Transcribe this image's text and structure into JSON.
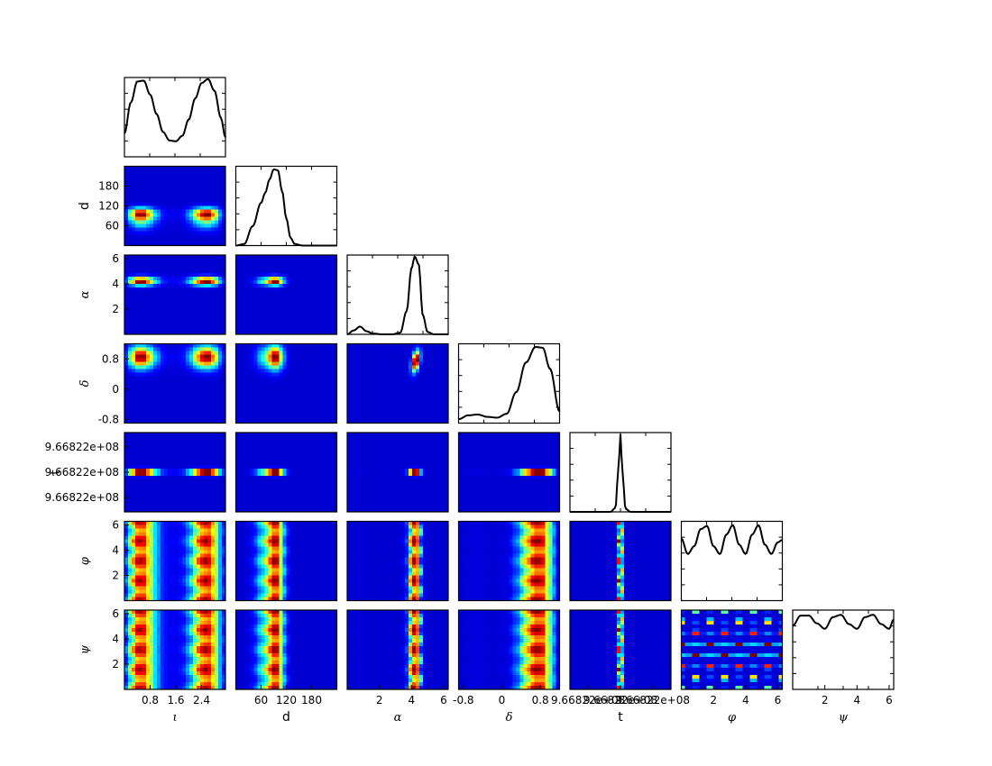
{
  "chart_data": {
    "type": "corner",
    "colormap": "jet",
    "parameters": [
      {
        "key": "iota",
        "label": "ι",
        "range": [
          0,
          3.1416
        ],
        "ticks": [
          0.8,
          1.6,
          2.4
        ],
        "tick_labels": [
          "0.8",
          "1.6",
          "2.4"
        ]
      },
      {
        "key": "d",
        "label": "d",
        "range": [
          0,
          240
        ],
        "ticks": [
          60,
          120,
          180
        ],
        "tick_labels": [
          "60",
          "120",
          "180"
        ]
      },
      {
        "key": "alpha",
        "label": "α",
        "range": [
          0,
          6.2832
        ],
        "ticks": [
          2,
          4,
          6
        ],
        "tick_labels": [
          "2",
          "4",
          "6"
        ]
      },
      {
        "key": "delta",
        "label": "δ",
        "range": [
          -0.9,
          1.2
        ],
        "ticks": [
          -0.8,
          0,
          0.8
        ],
        "tick_labels": [
          "-0.8",
          "0",
          "0.8"
        ]
      },
      {
        "key": "t",
        "label": "t",
        "range": [
          0,
          1
        ],
        "ticks": [
          0.18,
          0.5,
          0.82
        ],
        "tick_labels": [
          "9.66822e+08",
          "9.66822e+08",
          "9.66822e+08"
        ]
      },
      {
        "key": "phi",
        "label": "φ",
        "range": [
          0,
          6.2832
        ],
        "ticks": [
          2,
          4,
          6
        ],
        "tick_labels": [
          "2",
          "4",
          "6"
        ]
      },
      {
        "key": "psi",
        "label": "ψ",
        "range": [
          0,
          6.2832
        ],
        "ticks": [
          2,
          4,
          6
        ],
        "tick_labels": [
          "2",
          "4",
          "6"
        ]
      }
    ],
    "marginals": [
      {
        "param": "ι",
        "x": [
          0,
          0.2,
          0.4,
          0.6,
          0.8,
          1.0,
          1.2,
          1.4,
          1.6,
          1.8,
          2.0,
          2.2,
          2.4,
          2.6,
          2.8,
          3.0,
          3.14
        ],
        "y": [
          0.3,
          0.7,
          0.97,
          0.98,
          0.8,
          0.55,
          0.32,
          0.21,
          0.2,
          0.27,
          0.48,
          0.75,
          0.95,
          1.0,
          0.85,
          0.5,
          0.25
        ]
      },
      {
        "param": "d",
        "x": [
          0,
          20,
          40,
          60,
          70,
          80,
          90,
          100,
          110,
          120,
          130,
          140,
          160,
          200,
          240
        ],
        "y": [
          0.0,
          0.02,
          0.25,
          0.55,
          0.68,
          0.85,
          0.98,
          0.97,
          0.7,
          0.35,
          0.1,
          0.02,
          0.0,
          0.0,
          0.0
        ]
      },
      {
        "param": "α",
        "x": [
          0,
          0.4,
          0.8,
          1.2,
          1.6,
          2.2,
          2.8,
          3.3,
          3.7,
          4.0,
          4.2,
          4.45,
          4.7,
          5.0,
          5.4,
          6.28
        ],
        "y": [
          0.0,
          0.05,
          0.1,
          0.04,
          0.01,
          0.0,
          0.0,
          0.02,
          0.3,
          0.85,
          1.0,
          0.9,
          0.25,
          0.03,
          0.0,
          0.0
        ]
      },
      {
        "param": "δ",
        "x": [
          -0.9,
          -0.7,
          -0.5,
          -0.3,
          -0.1,
          0.1,
          0.3,
          0.5,
          0.7,
          0.85,
          1.0,
          1.2
        ],
        "y": [
          0.05,
          0.1,
          0.11,
          0.08,
          0.07,
          0.12,
          0.4,
          0.78,
          0.98,
          0.97,
          0.7,
          0.15
        ]
      },
      {
        "param": "t",
        "x": [
          0.0,
          0.4,
          0.45,
          0.48,
          0.5,
          0.52,
          0.55,
          0.6,
          1.0
        ],
        "y": [
          0.0,
          0.0,
          0.05,
          0.55,
          1.0,
          0.5,
          0.04,
          0.0,
          0.0
        ]
      },
      {
        "param": "φ",
        "x": [
          0,
          0.4,
          0.8,
          1.2,
          1.6,
          2.0,
          2.4,
          2.8,
          3.2,
          3.6,
          4.0,
          4.4,
          4.8,
          5.2,
          5.6,
          6.0,
          6.28
        ],
        "y": [
          0.8,
          0.6,
          0.7,
          0.92,
          0.96,
          0.7,
          0.6,
          0.85,
          0.97,
          0.72,
          0.6,
          0.85,
          0.97,
          0.72,
          0.6,
          0.75,
          0.78
        ]
      },
      {
        "param": "ψ",
        "x": [
          0,
          0.5,
          1.0,
          1.5,
          2.0,
          2.5,
          3.0,
          3.5,
          4.0,
          4.5,
          5.0,
          5.5,
          6.0,
          6.28
        ],
        "y": [
          0.82,
          0.95,
          0.95,
          0.85,
          0.78,
          0.93,
          0.96,
          0.84,
          0.78,
          0.93,
          0.96,
          0.84,
          0.78,
          0.9
        ]
      }
    ],
    "joint_panels_note_values": {
      "d_vs_iota_peaks": [
        [
          0.65,
          95
        ],
        [
          2.5,
          95
        ]
      ],
      "alpha_peak": 4.2,
      "delta_peak": 0.85,
      "d_peak": 90
    }
  }
}
